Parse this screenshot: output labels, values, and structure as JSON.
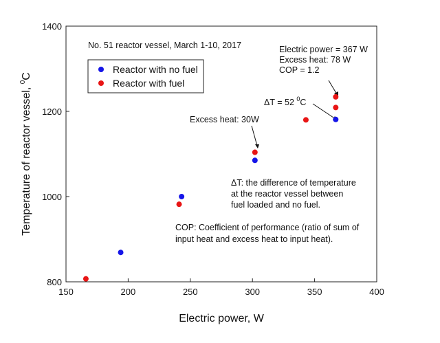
{
  "chart_data": {
    "type": "scatter",
    "title": "No. 51 reactor vessel, March 1-10, 2017",
    "xlabel": "Electric power, W",
    "ylabel": "Temperature of reactor vessel, ",
    "ylabel_unit": "C",
    "ylabel_unit_sup": "0",
    "xlim": [
      150,
      400
    ],
    "ylim": [
      800,
      1400
    ],
    "xticks": [
      150,
      200,
      250,
      300,
      350,
      400
    ],
    "yticks": [
      800,
      1000,
      1200,
      1400
    ],
    "grid": false,
    "legend_position": "top-left",
    "series": [
      {
        "name": "Reactor with no fuel",
        "color": "#1515e8",
        "points": [
          {
            "x": 194,
            "y": 869
          },
          {
            "x": 243,
            "y": 1000
          },
          {
            "x": 302,
            "y": 1085
          },
          {
            "x": 367,
            "y": 1181
          }
        ]
      },
      {
        "name": "Reactor with fuel",
        "color": "#e81515",
        "points": [
          {
            "x": 166,
            "y": 807
          },
          {
            "x": 241,
            "y": 982
          },
          {
            "x": 302,
            "y": 1104
          },
          {
            "x": 343,
            "y": 1180
          },
          {
            "x": 367,
            "y": 1209
          },
          {
            "x": 367,
            "y": 1234
          }
        ]
      }
    ],
    "annotations": {
      "max_point": {
        "line1": "Electric power = 367 W",
        "line2": "Excess heat: 78 W",
        "line3": "COP = 1.2"
      },
      "delta_t": {
        "symbol": "ΔT = 52 ",
        "sup": "0",
        "unit": "C"
      },
      "excess_30": "Excess heat: 30W",
      "delta_def": {
        "line1": "ΔT: the difference of temperature",
        "line2": "at the reactor vessel between",
        "line3": "fuel loaded and no fuel."
      },
      "cop_def": {
        "line1": "COP: Coefficient of performance (ratio of sum of",
        "line2": "input heat and excess heat to input heat)."
      }
    }
  }
}
